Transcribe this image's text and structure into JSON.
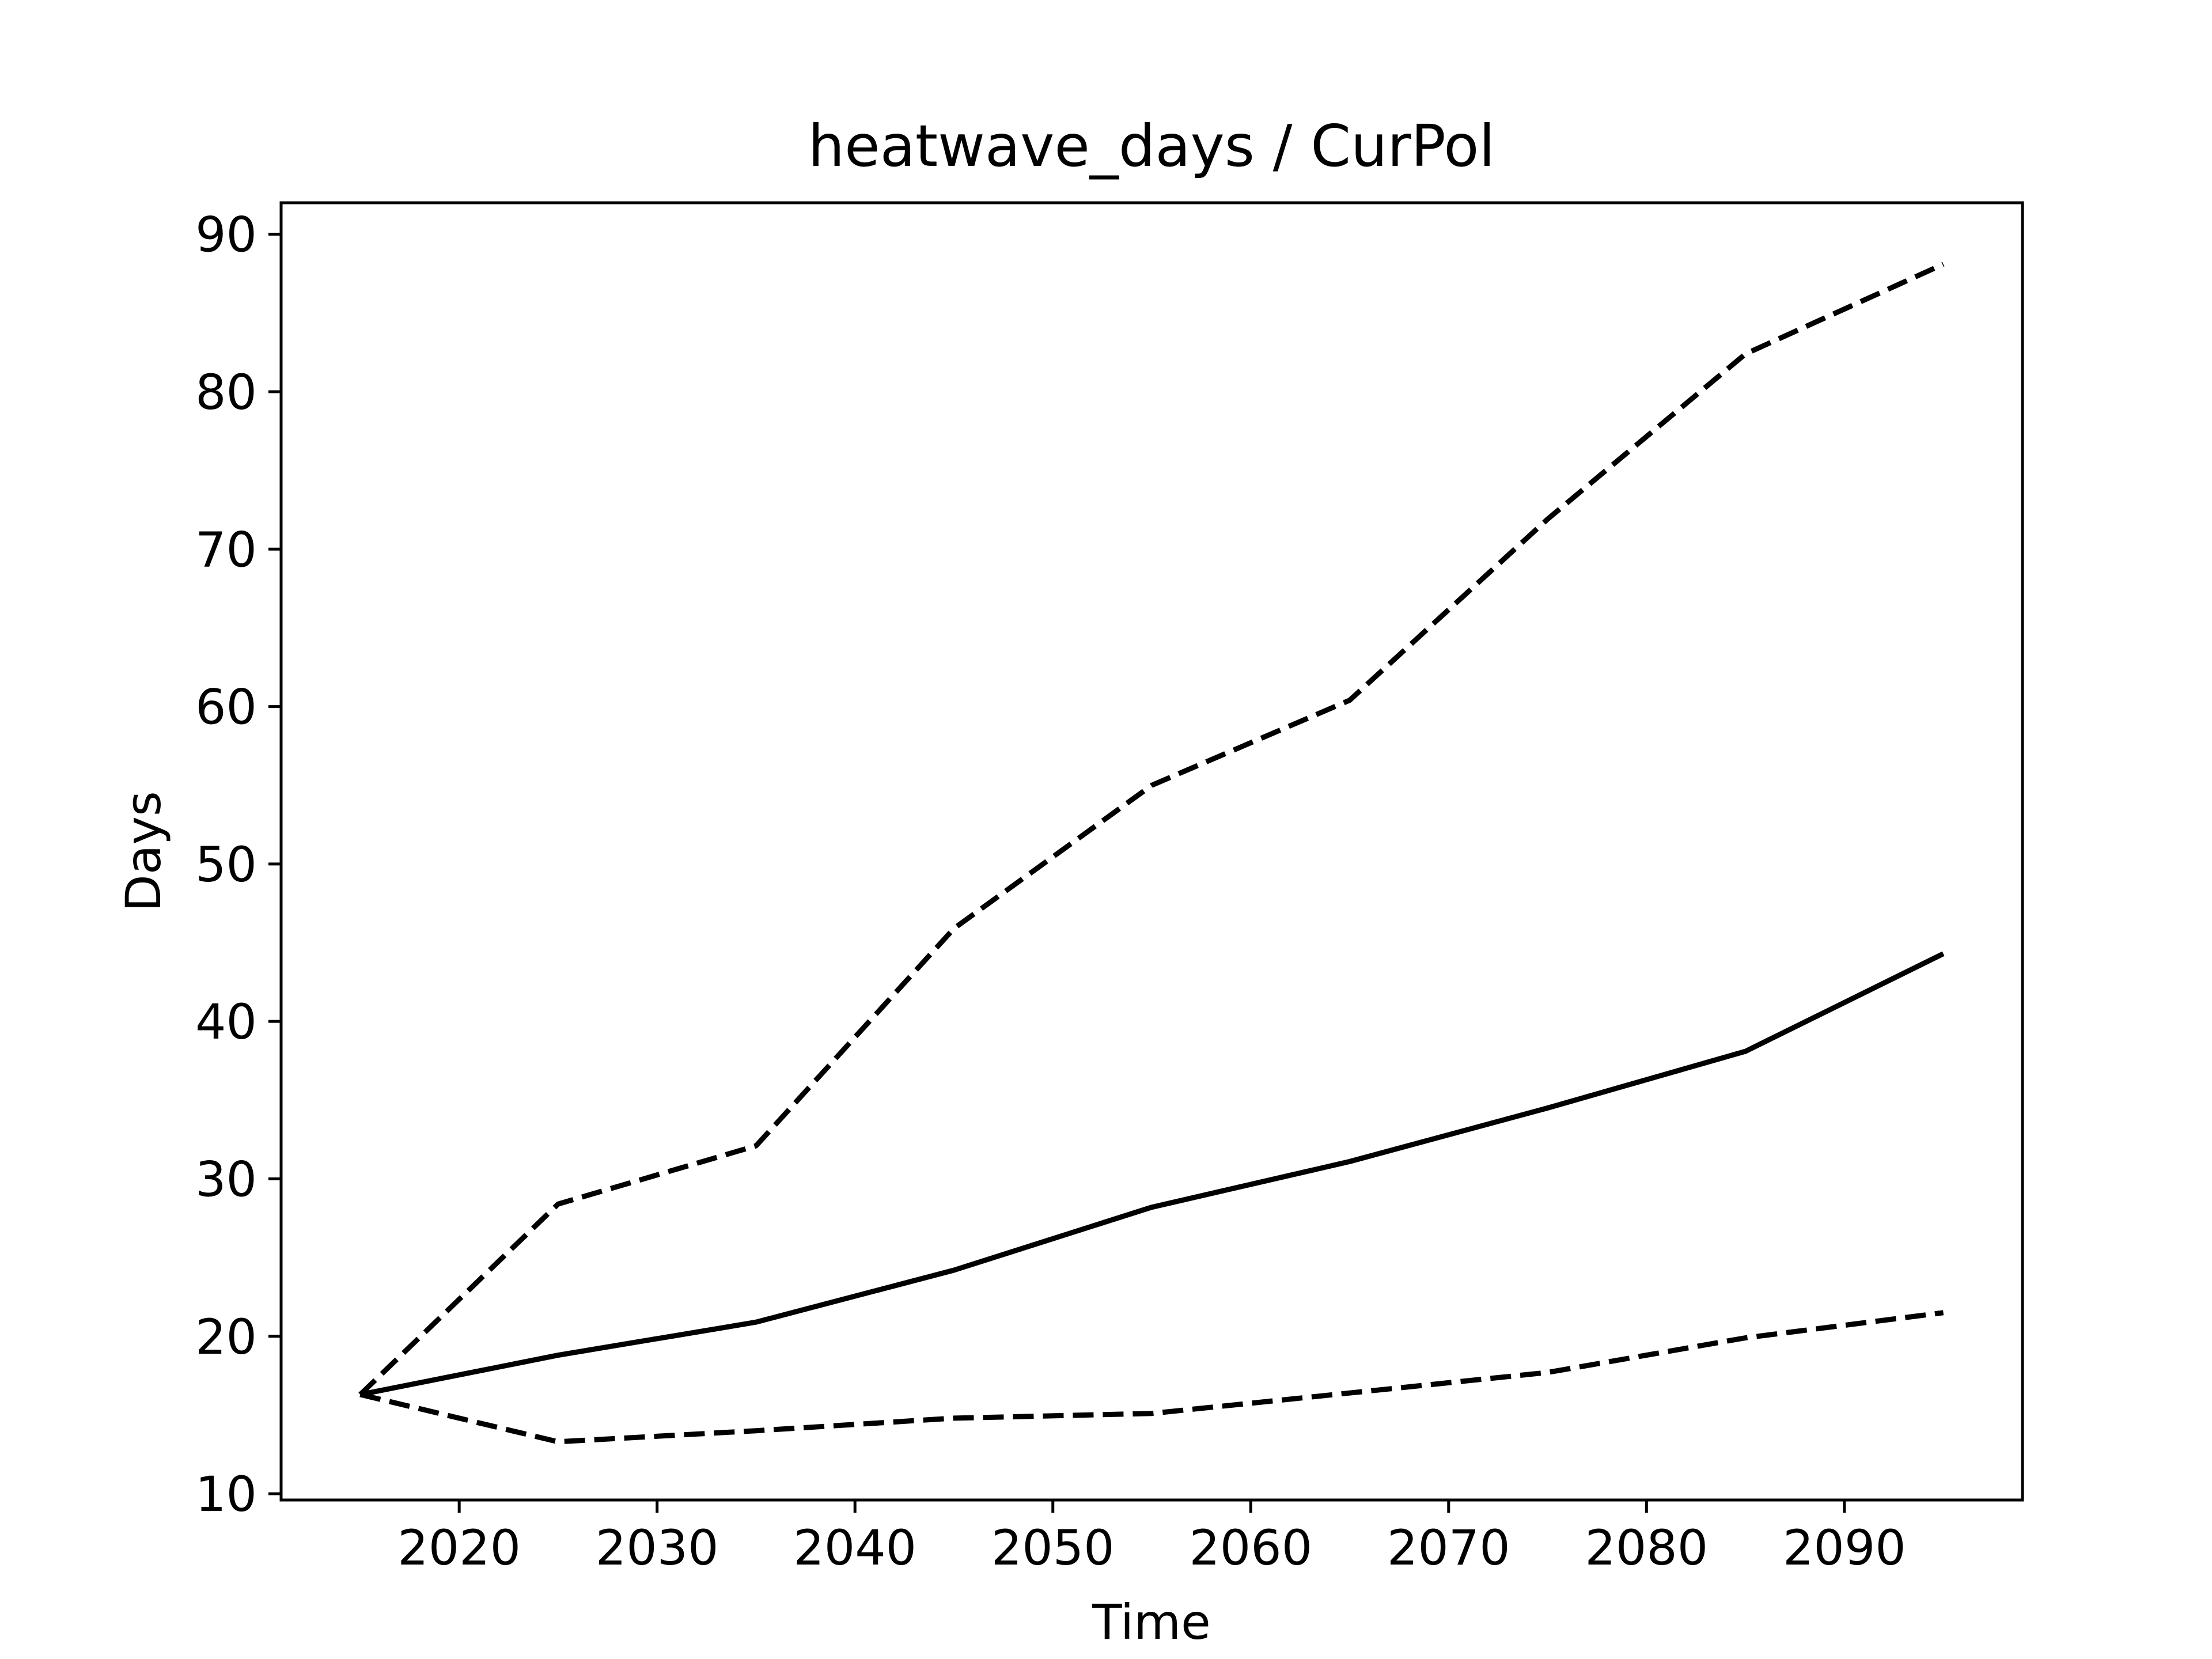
{
  "colors": {
    "background": "#ffffff",
    "lines": "#000000",
    "axes": "#000000"
  },
  "chart_data": {
    "type": "line",
    "title": "heatwave_days / CurPol",
    "xlabel": "Time",
    "ylabel": "Days",
    "xlim": [
      2011,
      2099
    ],
    "ylim": [
      9.6,
      92
    ],
    "grid": false,
    "legend": "none",
    "xticks": [
      2020,
      2030,
      2040,
      2050,
      2060,
      2070,
      2080,
      2090
    ],
    "yticks": [
      10,
      20,
      30,
      40,
      50,
      60,
      70,
      80,
      90
    ],
    "x": [
      2015,
      2025,
      2035,
      2045,
      2055,
      2065,
      2075,
      2085,
      2095
    ],
    "series": [
      {
        "line_style": "solid",
        "values": [
          16.3,
          18.8,
          20.9,
          24.2,
          28.2,
          31.1,
          34.5,
          38.1,
          44.3
        ]
      },
      {
        "line_style": "dashed",
        "values": [
          16.3,
          28.4,
          32.1,
          45.9,
          55.0,
          60.4,
          71.9,
          82.4,
          88.1
        ]
      },
      {
        "line_style": "dashed",
        "values": [
          16.3,
          13.3,
          14.0,
          14.8,
          15.1,
          16.4,
          17.7,
          19.9,
          21.5
        ]
      }
    ]
  }
}
